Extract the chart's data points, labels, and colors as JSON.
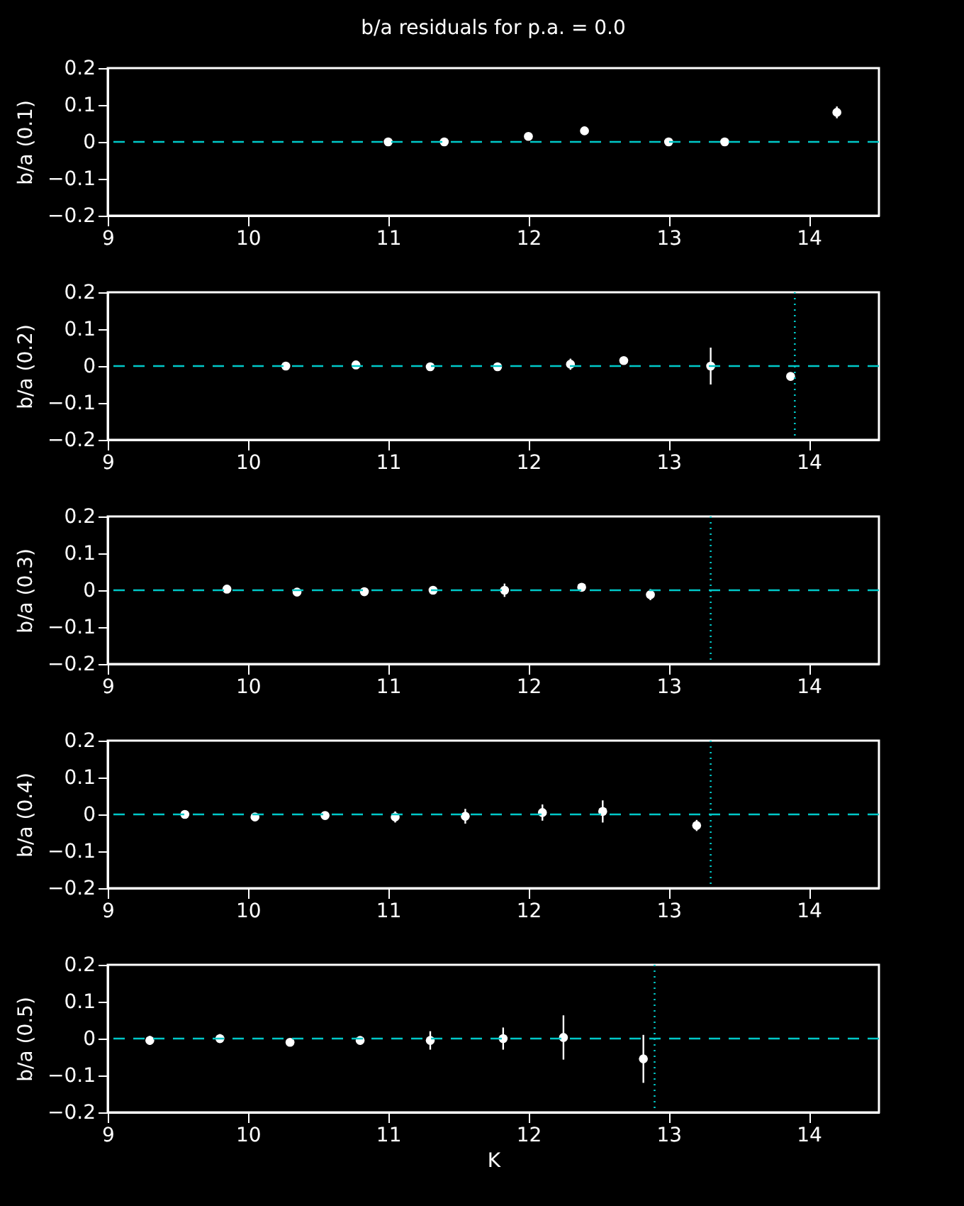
{
  "chart_data": [
    {
      "type": "scatter",
      "title": "b/a residuals for p.a. = 0.0",
      "ylabel": "b/a (0.1)",
      "xlim": [
        9,
        14.5
      ],
      "xticks": [
        9,
        10,
        11,
        12,
        13,
        14
      ],
      "ylim": [
        -0.2,
        0.2
      ],
      "yticks": [
        -0.2,
        -0.1,
        0,
        0.1,
        0.2
      ],
      "marker": "circle",
      "grid": false,
      "series": [
        {
          "color": "#ffffff",
          "x": [
            11.0,
            11.4,
            12.0,
            12.4,
            13.0,
            13.4,
            14.2
          ],
          "values": [
            0.0,
            0.0,
            0.015,
            0.03,
            0.0,
            0.0,
            0.08
          ],
          "errors": [
            null,
            null,
            0.006,
            0.008,
            null,
            null,
            0.016
          ]
        }
      ],
      "ref_lines": [
        {
          "axis": "y",
          "value": 0,
          "color": "#00c8c8",
          "line_style": "dashed"
        }
      ]
    },
    {
      "type": "scatter",
      "ylabel": "b/a (0.2)",
      "xlim": [
        9,
        14.5
      ],
      "xticks": [
        9,
        10,
        11,
        12,
        13,
        14
      ],
      "ylim": [
        -0.2,
        0.2
      ],
      "yticks": [
        -0.2,
        -0.1,
        0,
        0.1,
        0.2
      ],
      "marker": "circle",
      "grid": false,
      "series": [
        {
          "color": "#ffffff",
          "x": [
            10.27,
            10.77,
            11.3,
            11.78,
            12.3,
            12.68,
            13.3,
            13.87
          ],
          "values": [
            0.0,
            0.003,
            -0.002,
            -0.002,
            0.005,
            0.015,
            0.0,
            -0.028
          ],
          "errors": [
            0.006,
            null,
            null,
            null,
            0.015,
            0.01,
            0.05,
            0.008
          ]
        }
      ],
      "ref_lines": [
        {
          "axis": "y",
          "value": 0,
          "color": "#00c8c8",
          "line_style": "dashed"
        },
        {
          "axis": "x",
          "value": 13.9,
          "color": "#00c8c8",
          "line_style": "dotted"
        }
      ]
    },
    {
      "type": "scatter",
      "ylabel": "b/a (0.3)",
      "xlim": [
        9,
        14.5
      ],
      "xticks": [
        9,
        10,
        11,
        12,
        13,
        14
      ],
      "ylim": [
        -0.2,
        0.2
      ],
      "yticks": [
        -0.2,
        -0.1,
        0,
        0.1,
        0.2
      ],
      "marker": "circle",
      "grid": false,
      "series": [
        {
          "color": "#ffffff",
          "x": [
            9.85,
            10.35,
            10.83,
            11.32,
            11.83,
            12.38,
            12.87
          ],
          "values": [
            0.003,
            -0.005,
            -0.004,
            0.0,
            0.0,
            0.008,
            -0.012
          ],
          "errors": [
            null,
            null,
            0.007,
            0.01,
            0.018,
            0.01,
            0.015
          ]
        }
      ],
      "ref_lines": [
        {
          "axis": "y",
          "value": 0,
          "color": "#00c8c8",
          "line_style": "dashed"
        },
        {
          "axis": "x",
          "value": 13.3,
          "color": "#00c8c8",
          "line_style": "dotted"
        }
      ]
    },
    {
      "type": "scatter",
      "ylabel": "b/a (0.4)",
      "xlim": [
        9,
        14.5
      ],
      "xticks": [
        9,
        10,
        11,
        12,
        13,
        14
      ],
      "ylim": [
        -0.2,
        0.2
      ],
      "yticks": [
        -0.2,
        -0.1,
        0,
        0.1,
        0.2
      ],
      "marker": "circle",
      "grid": false,
      "series": [
        {
          "color": "#ffffff",
          "x": [
            9.55,
            10.05,
            10.55,
            11.05,
            11.55,
            12.1,
            12.53,
            13.2
          ],
          "values": [
            0.0,
            -0.007,
            -0.003,
            -0.007,
            -0.005,
            0.005,
            0.008,
            -0.03
          ],
          "errors": [
            null,
            null,
            null,
            0.015,
            0.02,
            0.022,
            0.03,
            0.015
          ]
        }
      ],
      "ref_lines": [
        {
          "axis": "y",
          "value": 0,
          "color": "#00c8c8",
          "line_style": "dashed"
        },
        {
          "axis": "x",
          "value": 13.3,
          "color": "#00c8c8",
          "line_style": "dotted"
        }
      ]
    },
    {
      "type": "scatter",
      "xlabel": "K",
      "ylabel": "b/a (0.5)",
      "xlim": [
        9,
        14.5
      ],
      "xticks": [
        9,
        10,
        11,
        12,
        13,
        14
      ],
      "ylim": [
        -0.2,
        0.2
      ],
      "yticks": [
        -0.2,
        -0.1,
        0,
        0.1,
        0.2
      ],
      "marker": "circle",
      "grid": false,
      "series": [
        {
          "color": "#ffffff",
          "x": [
            9.3,
            9.8,
            10.3,
            10.8,
            11.3,
            11.82,
            12.25,
            12.82
          ],
          "values": [
            -0.005,
            0.0,
            -0.01,
            -0.005,
            -0.005,
            0.0,
            0.003,
            -0.055
          ],
          "errors": [
            0.012,
            0.012,
            0.007,
            0.01,
            0.025,
            0.03,
            0.06,
            0.065
          ]
        }
      ],
      "ref_lines": [
        {
          "axis": "y",
          "value": 0,
          "color": "#00c8c8",
          "line_style": "dashed"
        },
        {
          "axis": "x",
          "value": 12.9,
          "color": "#00c8c8",
          "line_style": "dotted"
        }
      ]
    }
  ]
}
